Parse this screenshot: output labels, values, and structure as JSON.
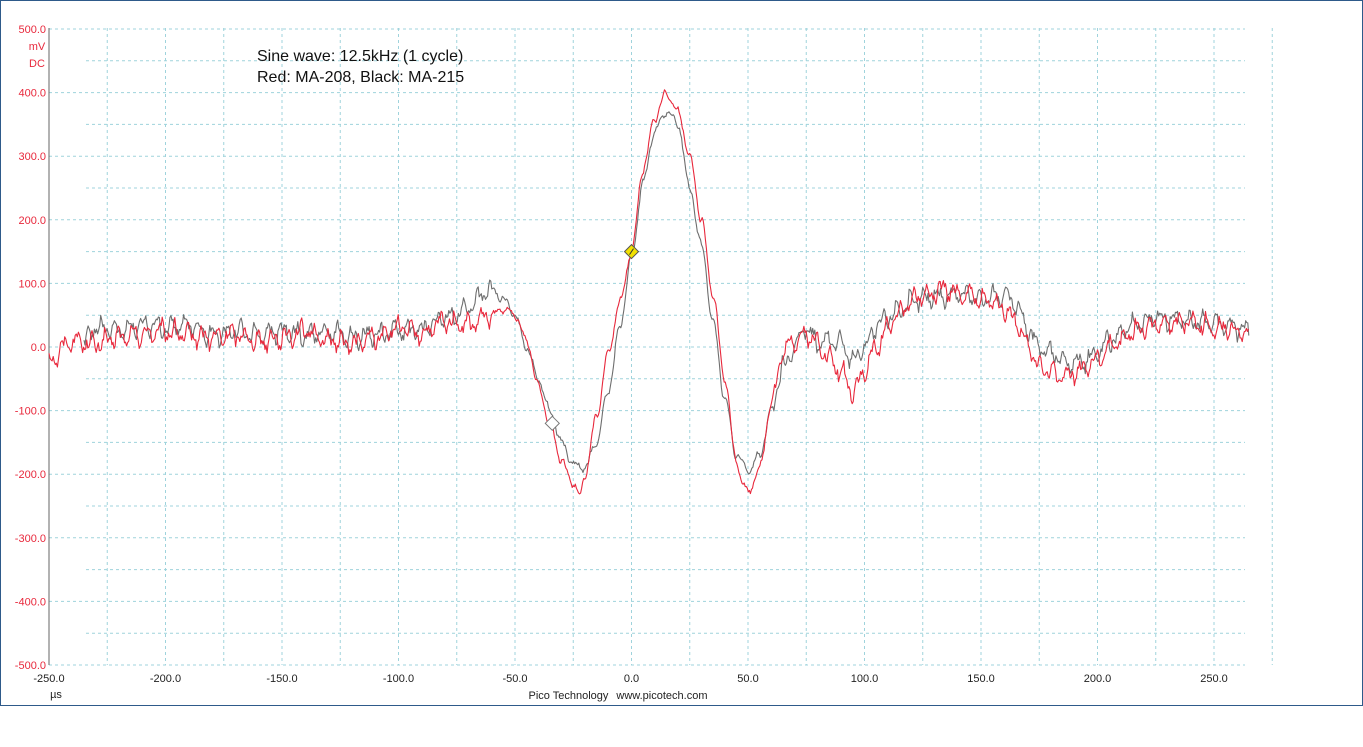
{
  "annotation": {
    "line1": "Sine wave: 12.5kHz (1 cycle)",
    "line2": "Red: MA-208, Black: MA-215"
  },
  "footer": {
    "brand": "Pico Technology",
    "url": "www.picotech.com"
  },
  "colors": {
    "red_trace": "#e8283c",
    "black_trace": "#6e6e6e",
    "grid": "#9fd3dc",
    "y_axis_text": "#e8283c",
    "trigger_marker": "#f2e100",
    "ref_marker": "#ffffff"
  },
  "chart_data": {
    "type": "line",
    "y_unit_label": "mV",
    "y_coupling_label": "DC",
    "x_unit_label": "µs",
    "xlim": [
      -250,
      265
    ],
    "ylim": [
      -500,
      500
    ],
    "x_ticks": [
      -250,
      -200,
      -150,
      -100,
      -50,
      0,
      50,
      100,
      150,
      200,
      250
    ],
    "x_tick_labels": [
      "-250.0",
      "-200.0",
      "-150.0",
      "-100.0",
      "-50.0",
      "0.0",
      "50.0",
      "100.0",
      "150.0",
      "200.0",
      "250.0"
    ],
    "y_ticks": [
      500,
      400,
      300,
      200,
      100,
      0,
      -100,
      -200,
      -300,
      -400,
      -500
    ],
    "y_tick_labels": [
      "500.0",
      "400.0",
      "300.0",
      "200.0",
      "100.0",
      "0.0",
      "-100.0",
      "-200.0",
      "-300.0",
      "-400.0",
      "-500.0"
    ],
    "grid": true,
    "series": [
      {
        "name": "MA-208",
        "color": "#e8283c",
        "x": [
          -250,
          -240,
          -230,
          -220,
          -210,
          -200,
          -190,
          -180,
          -170,
          -160,
          -150,
          -140,
          -130,
          -120,
          -110,
          -100,
          -90,
          -80,
          -70,
          -60,
          -55,
          -50,
          -45,
          -40,
          -35,
          -30,
          -25,
          -22,
          -20,
          -15,
          -10,
          -5,
          0,
          5,
          10,
          15,
          20,
          25,
          30,
          35,
          40,
          45,
          48,
          50,
          55,
          60,
          65,
          70,
          75,
          80,
          85,
          90,
          95,
          100,
          105,
          110,
          115,
          120,
          125,
          130,
          135,
          140,
          145,
          150,
          155,
          160,
          165,
          170,
          175,
          180,
          185,
          190,
          195,
          200,
          205,
          210,
          215,
          220,
          225,
          230,
          235,
          240,
          245,
          250,
          255,
          260,
          265
        ],
        "y": [
          -20,
          10,
          5,
          15,
          20,
          25,
          18,
          15,
          20,
          10,
          15,
          25,
          10,
          5,
          15,
          30,
          20,
          40,
          35,
          50,
          60,
          50,
          10,
          -60,
          -120,
          -180,
          -215,
          -235,
          -200,
          -110,
          -10,
          70,
          150,
          280,
          360,
          400,
          370,
          300,
          200,
          80,
          -50,
          -180,
          -215,
          -230,
          -190,
          -90,
          -10,
          10,
          20,
          5,
          -20,
          -40,
          -70,
          -40,
          0,
          30,
          55,
          75,
          80,
          85,
          90,
          85,
          80,
          75,
          70,
          60,
          40,
          0,
          -30,
          -40,
          -45,
          -40,
          -35,
          -20,
          0,
          10,
          25,
          30,
          35,
          35,
          40,
          40,
          35,
          30,
          30,
          25,
          20
        ]
      },
      {
        "name": "MA-215",
        "color": "#6e6e6e",
        "x": [
          -235,
          -230,
          -220,
          -210,
          -200,
          -190,
          -180,
          -170,
          -160,
          -150,
          -140,
          -130,
          -120,
          -110,
          -100,
          -90,
          -80,
          -70,
          -65,
          -60,
          -55,
          -50,
          -45,
          -40,
          -35,
          -30,
          -25,
          -20,
          -15,
          -10,
          -5,
          0,
          5,
          10,
          15,
          20,
          25,
          30,
          35,
          40,
          45,
          50,
          55,
          60,
          65,
          70,
          75,
          80,
          85,
          90,
          95,
          100,
          105,
          110,
          115,
          120,
          125,
          130,
          135,
          140,
          145,
          150,
          155,
          160,
          165,
          170,
          175,
          180,
          185,
          190,
          195,
          200,
          205,
          210,
          215,
          220,
          225,
          230,
          235,
          240,
          245,
          250,
          255,
          260,
          265
        ],
        "y": [
          10,
          30,
          25,
          35,
          30,
          35,
          20,
          25,
          20,
          25,
          20,
          25,
          15,
          20,
          25,
          30,
          45,
          60,
          80,
          90,
          75,
          50,
          0,
          -50,
          -100,
          -150,
          -185,
          -190,
          -150,
          -70,
          30,
          140,
          260,
          340,
          370,
          350,
          250,
          160,
          40,
          -80,
          -170,
          -195,
          -170,
          -100,
          -30,
          0,
          30,
          5,
          10,
          5,
          -20,
          0,
          30,
          45,
          60,
          70,
          75,
          80,
          80,
          85,
          80,
          75,
          80,
          80,
          65,
          30,
          0,
          -10,
          -20,
          -25,
          -20,
          -10,
          10,
          20,
          35,
          40,
          45,
          45,
          45,
          40,
          40,
          40,
          35,
          30,
          25
        ]
      }
    ],
    "trigger_marker": {
      "x": 0,
      "y": 150
    },
    "reference_marker": {
      "x": -34,
      "y": -120
    }
  }
}
